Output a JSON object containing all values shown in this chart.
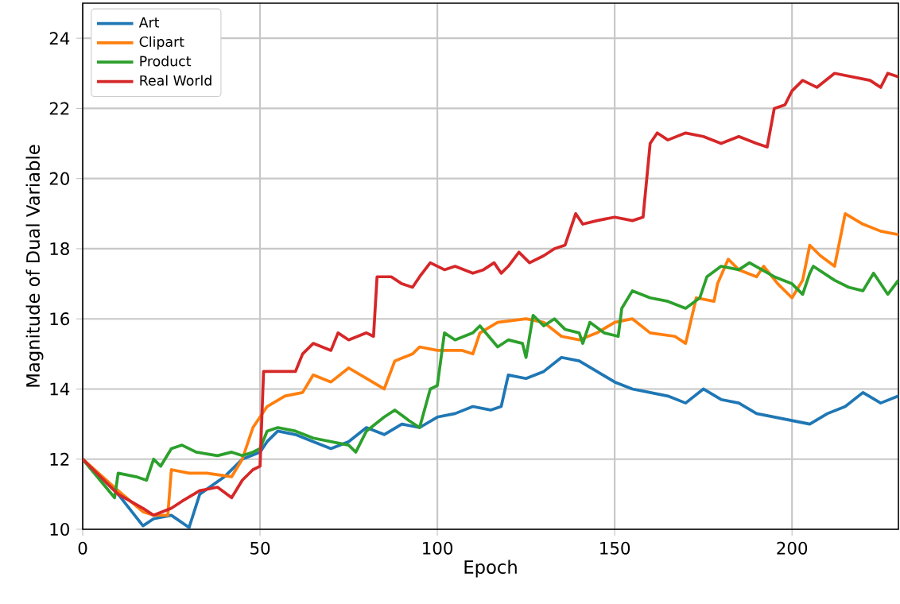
{
  "chart_data": {
    "type": "line",
    "xlabel": "Epoch",
    "ylabel": "Magnitude of Dual Variable",
    "xlim": [
      0,
      230
    ],
    "ylim": [
      10,
      25
    ],
    "xticks": [
      0,
      50,
      100,
      150,
      200
    ],
    "yticks": [
      10,
      12,
      14,
      16,
      18,
      20,
      22,
      24
    ],
    "grid": true,
    "legend": "top left",
    "marker": "none",
    "line_style": "solid",
    "series": [
      {
        "name": "Art",
        "color": "#1f77b4",
        "x": [
          0,
          10,
          17,
          20,
          25,
          30,
          33,
          40,
          45,
          50,
          52,
          55,
          60,
          65,
          70,
          75,
          80,
          85,
          90,
          95,
          100,
          105,
          110,
          115,
          118,
          120,
          125,
          130,
          135,
          140,
          145,
          150,
          155,
          160,
          165,
          170,
          175,
          180,
          185,
          190,
          195,
          200,
          205,
          210,
          215,
          220,
          225,
          230
        ],
        "values": [
          12.0,
          11.0,
          10.1,
          10.3,
          10.4,
          10.05,
          11.0,
          11.5,
          12.0,
          12.2,
          12.5,
          12.8,
          12.7,
          12.5,
          12.3,
          12.5,
          12.9,
          12.7,
          13.0,
          12.9,
          13.2,
          13.3,
          13.5,
          13.4,
          13.5,
          14.4,
          14.3,
          14.5,
          14.9,
          14.8,
          14.5,
          14.2,
          14.0,
          13.9,
          13.8,
          13.6,
          14.0,
          13.7,
          13.6,
          13.3,
          13.2,
          13.1,
          13.0,
          13.3,
          13.5,
          13.9,
          13.6,
          13.8
        ]
      },
      {
        "name": "Clipart",
        "color": "#ff7f0e",
        "x": [
          0,
          10,
          17,
          20,
          24,
          25,
          30,
          35,
          42,
          45,
          48,
          50,
          52,
          57,
          62,
          65,
          70,
          75,
          80,
          85,
          88,
          93,
          95,
          100,
          107,
          110,
          112,
          117,
          125,
          130,
          135,
          140,
          145,
          150,
          155,
          160,
          167,
          170,
          173,
          178,
          179,
          182,
          185,
          190,
          192,
          196,
          200,
          203,
          205,
          208,
          212,
          215,
          220,
          225,
          230
        ],
        "values": [
          12.0,
          11.1,
          10.5,
          10.4,
          10.4,
          11.7,
          11.6,
          11.6,
          11.5,
          12.0,
          12.9,
          13.2,
          13.5,
          13.8,
          13.9,
          14.4,
          14.2,
          14.6,
          14.3,
          14.0,
          14.8,
          15.0,
          15.2,
          15.1,
          15.1,
          15.0,
          15.6,
          15.9,
          16.0,
          15.9,
          15.5,
          15.4,
          15.6,
          15.9,
          16.0,
          15.6,
          15.5,
          15.3,
          16.6,
          16.5,
          17.0,
          17.7,
          17.4,
          17.2,
          17.5,
          17.0,
          16.6,
          17.1,
          18.1,
          17.8,
          17.5,
          19.0,
          18.7,
          18.5,
          18.4
        ]
      },
      {
        "name": "Product",
        "color": "#2ca02c",
        "x": [
          0,
          9,
          10,
          15,
          18,
          20,
          22,
          25,
          28,
          32,
          38,
          42,
          45,
          48,
          50,
          52,
          55,
          60,
          65,
          70,
          75,
          77,
          80,
          85,
          88,
          92,
          95,
          98,
          100,
          102,
          105,
          110,
          112,
          117,
          120,
          124,
          125,
          127,
          130,
          133,
          136,
          140,
          141,
          143,
          147,
          151,
          152,
          155,
          160,
          165,
          170,
          174,
          176,
          180,
          185,
          188,
          195,
          200,
          203,
          205,
          206,
          212,
          216,
          220,
          223,
          227,
          230
        ],
        "values": [
          12.0,
          10.9,
          11.6,
          11.5,
          11.4,
          12.0,
          11.8,
          12.3,
          12.4,
          12.2,
          12.1,
          12.2,
          12.1,
          12.2,
          12.3,
          12.8,
          12.9,
          12.8,
          12.6,
          12.5,
          12.4,
          12.2,
          12.8,
          13.2,
          13.4,
          13.1,
          12.9,
          14.0,
          14.1,
          15.6,
          15.4,
          15.6,
          15.8,
          15.2,
          15.4,
          15.3,
          14.9,
          16.1,
          15.8,
          16.0,
          15.7,
          15.6,
          15.3,
          15.9,
          15.6,
          15.5,
          16.3,
          16.8,
          16.6,
          16.5,
          16.3,
          16.6,
          17.2,
          17.5,
          17.4,
          17.6,
          17.2,
          17.0,
          16.7,
          17.3,
          17.5,
          17.1,
          16.9,
          16.8,
          17.3,
          16.7,
          17.1
        ]
      },
      {
        "name": "Real World",
        "color": "#d62728",
        "x": [
          0,
          10,
          17,
          20,
          25,
          28,
          33,
          38,
          42,
          45,
          48,
          50,
          51,
          55,
          60,
          62,
          65,
          70,
          72,
          75,
          80,
          82,
          83,
          87,
          90,
          93,
          95,
          98,
          102,
          105,
          110,
          113,
          116,
          118,
          120,
          123,
          126,
          130,
          133,
          136,
          139,
          141,
          145,
          150,
          155,
          158,
          160,
          162,
          165,
          170,
          175,
          180,
          185,
          190,
          193,
          195,
          198,
          200,
          203,
          207,
          212,
          217,
          222,
          225,
          227,
          230
        ],
        "values": [
          12.0,
          11.0,
          10.6,
          10.4,
          10.6,
          10.8,
          11.1,
          11.2,
          10.9,
          11.4,
          11.7,
          11.8,
          14.5,
          14.5,
          14.5,
          15.0,
          15.3,
          15.1,
          15.6,
          15.4,
          15.6,
          15.5,
          17.2,
          17.2,
          17.0,
          16.9,
          17.2,
          17.6,
          17.4,
          17.5,
          17.3,
          17.4,
          17.6,
          17.3,
          17.5,
          17.9,
          17.6,
          17.8,
          18.0,
          18.1,
          19.0,
          18.7,
          18.8,
          18.9,
          18.8,
          18.9,
          21.0,
          21.3,
          21.1,
          21.3,
          21.2,
          21.0,
          21.2,
          21.0,
          20.9,
          22.0,
          22.1,
          22.5,
          22.8,
          22.6,
          23.0,
          22.9,
          22.8,
          22.6,
          23.0,
          22.9
        ]
      }
    ]
  }
}
